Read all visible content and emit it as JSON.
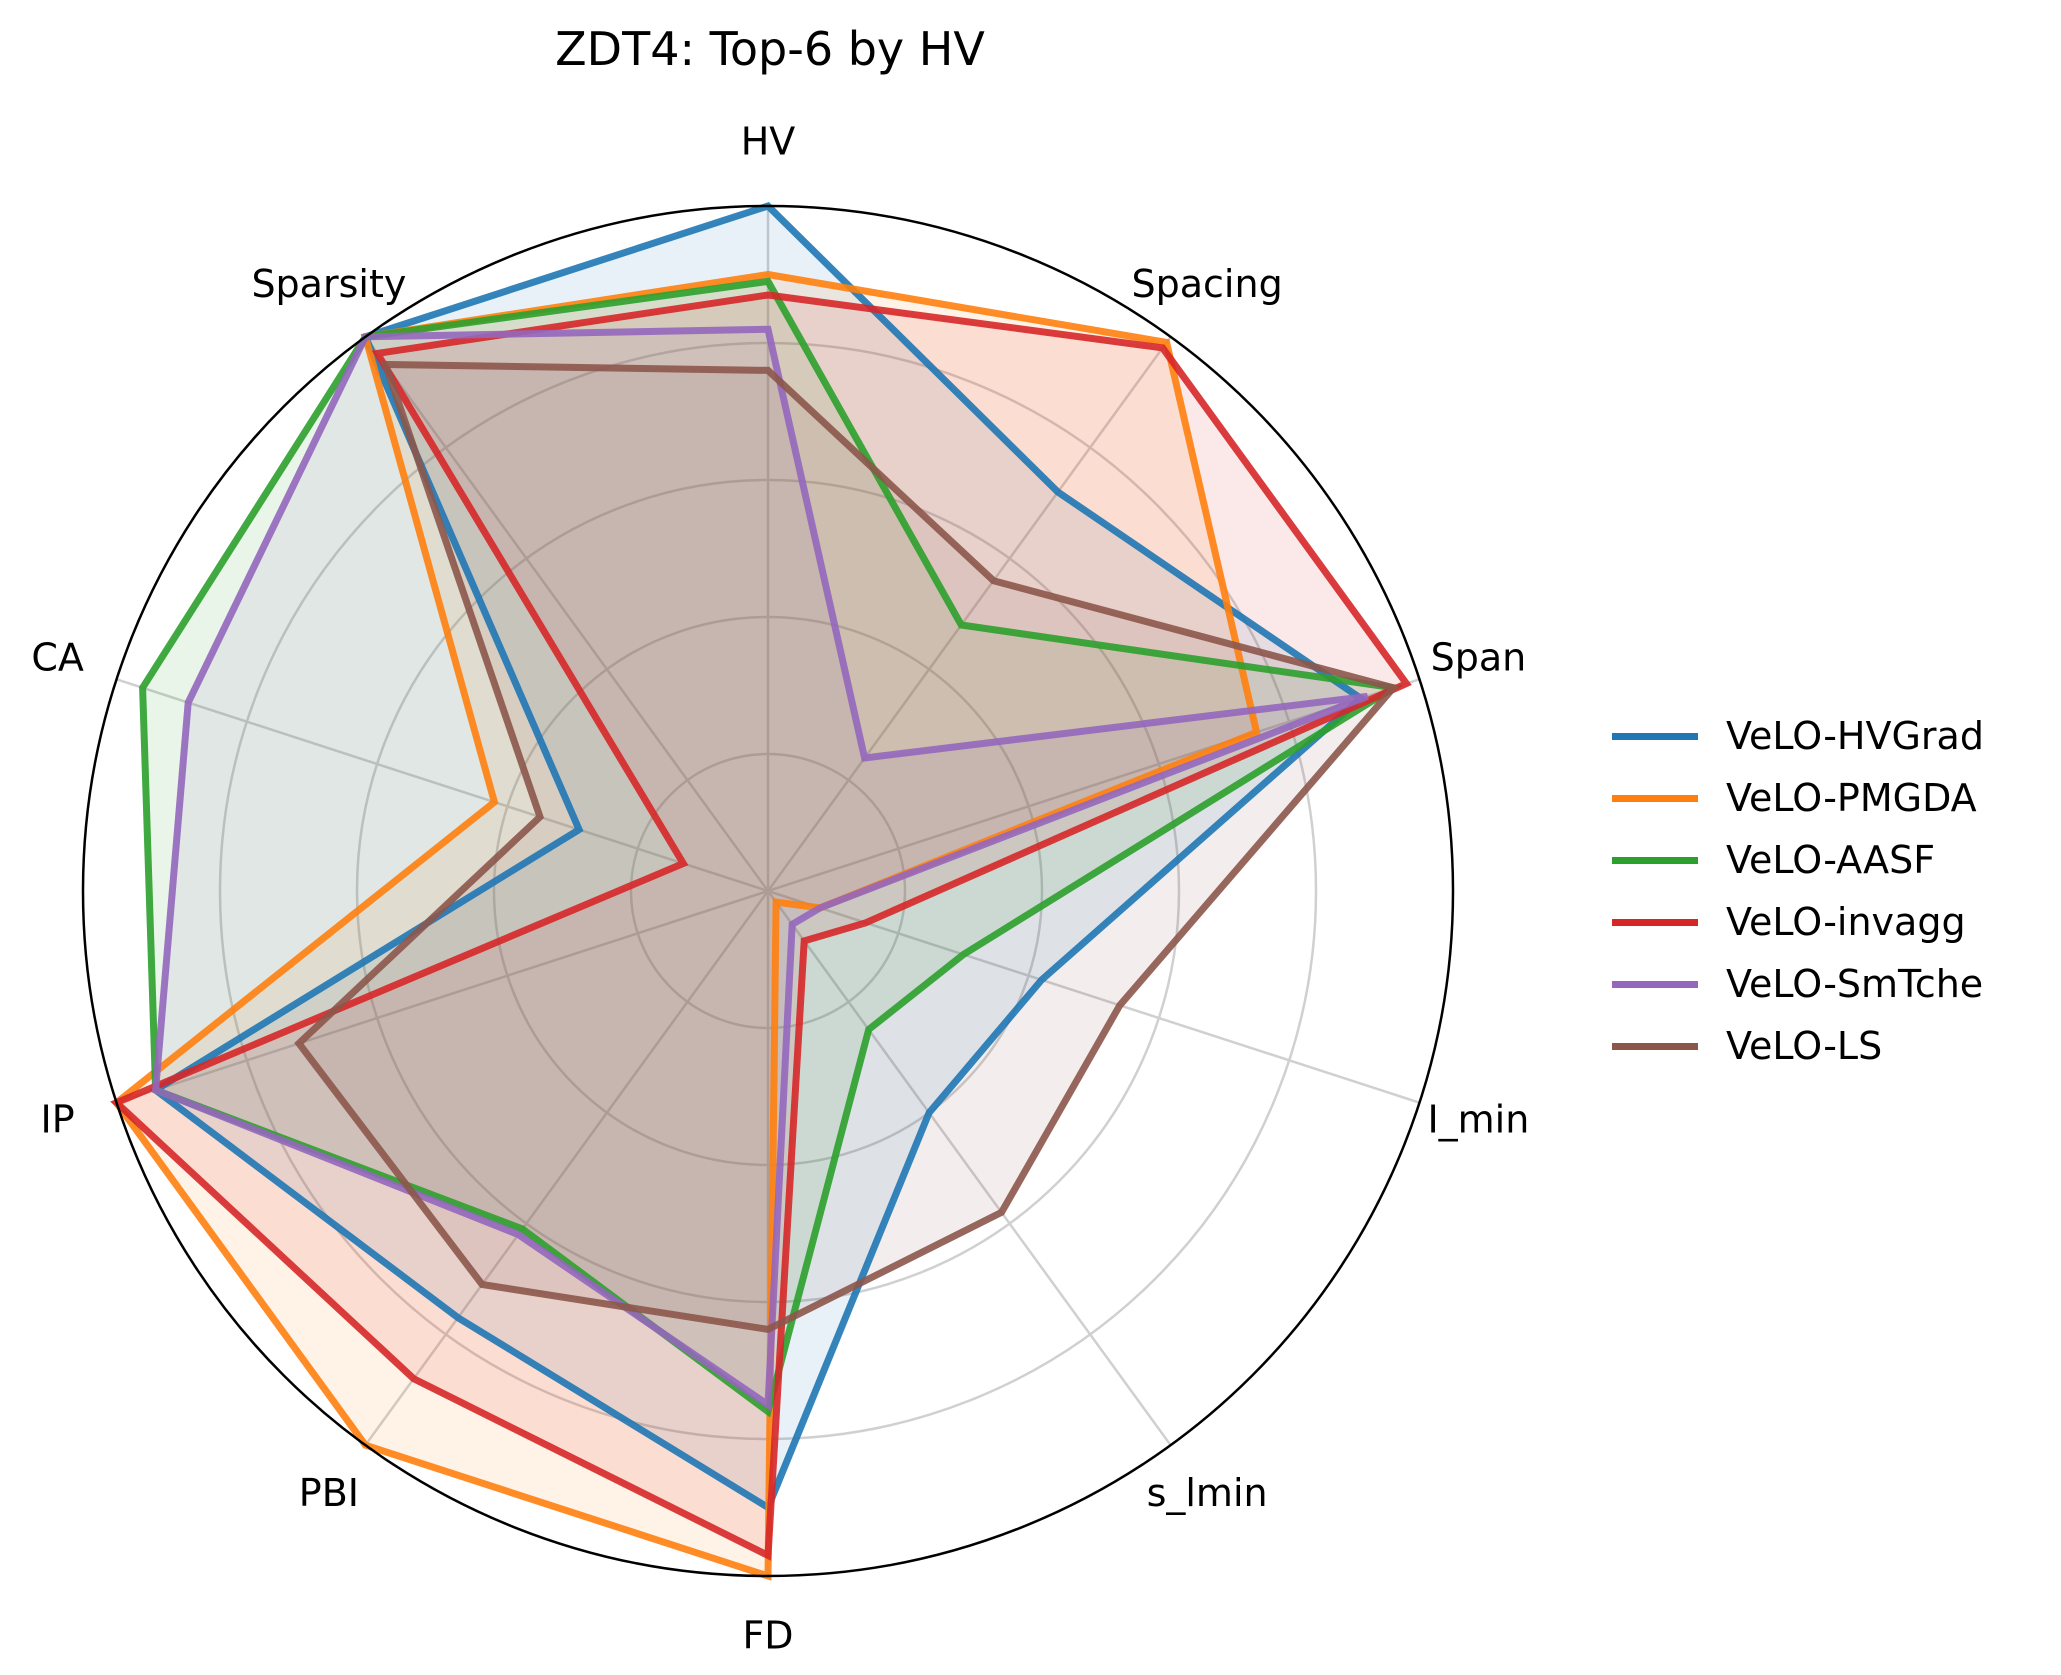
{
  "chart_data": {
    "type": "radar",
    "title": "ZDT4: Top-6 by HV",
    "axes": [
      "HV",
      "Spacing",
      "Span",
      "I_min",
      "s_lmin",
      "FD",
      "PBI",
      "IP",
      "CA",
      "Sparsity"
    ],
    "range": [
      0,
      1
    ],
    "grid": true,
    "grid_levels": [
      0.2,
      0.4,
      0.6,
      0.8
    ],
    "legend_position": "right",
    "series": [
      {
        "name": "VeLO-HVGrad",
        "color": "#1f77b4",
        "values": [
          1.0,
          0.72,
          0.91,
          0.42,
          0.4,
          0.9,
          0.77,
          0.94,
          0.29,
          1.0
        ]
      },
      {
        "name": "VeLO-PMGDA",
        "color": "#ff7f0e",
        "values": [
          0.9,
          0.99,
          0.75,
          0.08,
          0.02,
          1.0,
          1.0,
          1.0,
          0.42,
          1.0
        ]
      },
      {
        "name": "VeLO-AASF",
        "color": "#2ca02c",
        "values": [
          0.89,
          0.48,
          0.96,
          0.3,
          0.25,
          0.76,
          0.61,
          0.94,
          0.96,
          1.0
        ]
      },
      {
        "name": "VeLO-invagg",
        "color": "#d62728",
        "values": [
          0.87,
          0.98,
          0.98,
          0.15,
          0.09,
          0.97,
          0.88,
          1.0,
          0.13,
          0.97
        ]
      },
      {
        "name": "VeLO-SmTche",
        "color": "#9467bd",
        "values": [
          0.82,
          0.24,
          0.92,
          0.08,
          0.06,
          0.75,
          0.62,
          0.94,
          0.89,
          1.0
        ]
      },
      {
        "name": "VeLO-LS",
        "color": "#8c564b",
        "values": [
          0.76,
          0.56,
          0.96,
          0.54,
          0.58,
          0.64,
          0.71,
          0.72,
          0.35,
          0.95
        ]
      }
    ]
  }
}
